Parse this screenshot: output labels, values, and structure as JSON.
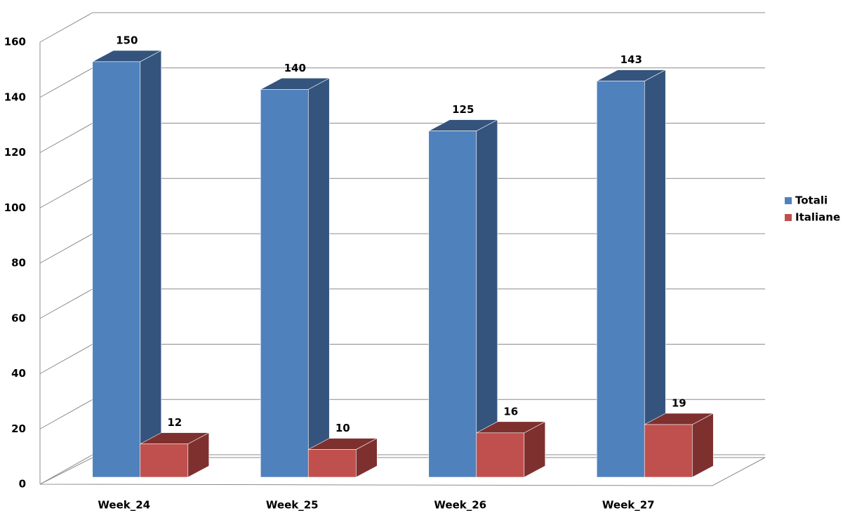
{
  "chart_data": {
    "type": "bar3d",
    "categories": [
      "Week_24",
      "Week_25",
      "Week_26",
      "Week_27"
    ],
    "series": [
      {
        "name": "Totali",
        "color": "#4f81bd",
        "side": "#34547d",
        "values": [
          150,
          140,
          125,
          143
        ]
      },
      {
        "name": "Italiane",
        "color": "#c0504d",
        "side": "#7e302e",
        "values": [
          12,
          10,
          16,
          19
        ]
      }
    ],
    "ylim": [
      0,
      160
    ],
    "yticks": [
      0,
      20,
      40,
      60,
      80,
      100,
      120,
      140,
      160
    ],
    "grid": true,
    "legend": "right"
  }
}
